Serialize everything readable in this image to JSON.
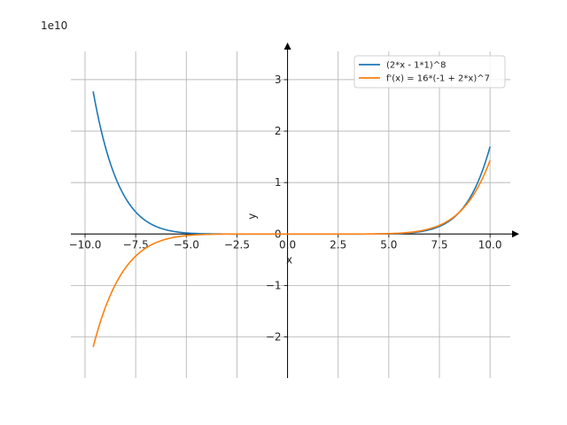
{
  "chart_data": {
    "type": "line",
    "title": "",
    "xlabel": "x",
    "ylabel": "y",
    "xlim": [
      -10.7,
      11.0
    ],
    "ylim": [
      -2.8,
      3.55
    ],
    "y_scale_label": "1e10",
    "x_ticks": [
      -10.0,
      -7.5,
      -5.0,
      -2.5,
      0.0,
      2.5,
      5.0,
      7.5,
      10.0
    ],
    "x_tick_labels": [
      "−10.0",
      "−7.5",
      "−5.0",
      "−2.5",
      "0.0",
      "2.5",
      "5.0",
      "7.5",
      "10.0"
    ],
    "y_ticks": [
      -2,
      -1,
      0,
      1,
      2,
      3
    ],
    "y_tick_labels": [
      "−2",
      "−1",
      "0",
      "1",
      "2",
      "3"
    ],
    "grid": true,
    "legend_position": "top-right",
    "series": [
      {
        "name": "(2*x - 1*1)^8",
        "color": "#1f77b4",
        "function": "(2*x - 1)^8",
        "x_range": [
          -9.6,
          10.0
        ],
        "units": "1e10"
      },
      {
        "name": "f'(x) = 16*(-1 + 2*x)^7",
        "color": "#ff7f0e",
        "function": "16*(2*x - 1)^7",
        "x_range": [
          -9.6,
          10.0
        ],
        "units": "1e10"
      }
    ]
  }
}
